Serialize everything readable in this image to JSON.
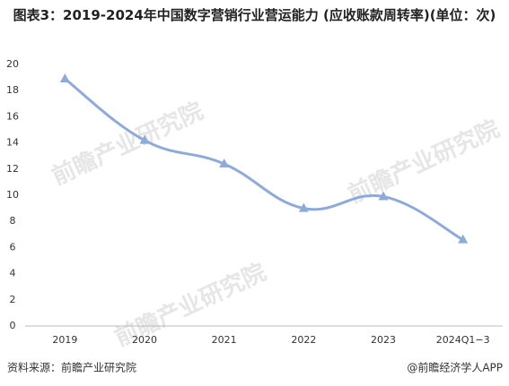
{
  "chart_data": {
    "type": "line",
    "title": "图表3：2019-2024年中国数字营销行业营运能力 (应收账款周转率)(单位：次)",
    "categories": [
      "2019",
      "2020",
      "2021",
      "2022",
      "2023",
      "2024Q1−3"
    ],
    "series": [
      {
        "name": "应收账款周转率",
        "color": "#8eaadb",
        "values": [
          18.9,
          14.2,
          12.4,
          9.0,
          9.9,
          6.6
        ]
      }
    ],
    "ylim": [
      0,
      20
    ],
    "yticks": [
      0,
      2,
      4,
      6,
      8,
      10,
      12,
      14,
      16,
      18,
      20
    ],
    "watermark": "前瞻产业研究院",
    "source": "资料来源：前瞻产业研究院",
    "credit": "@前瞻经济学人APP"
  }
}
